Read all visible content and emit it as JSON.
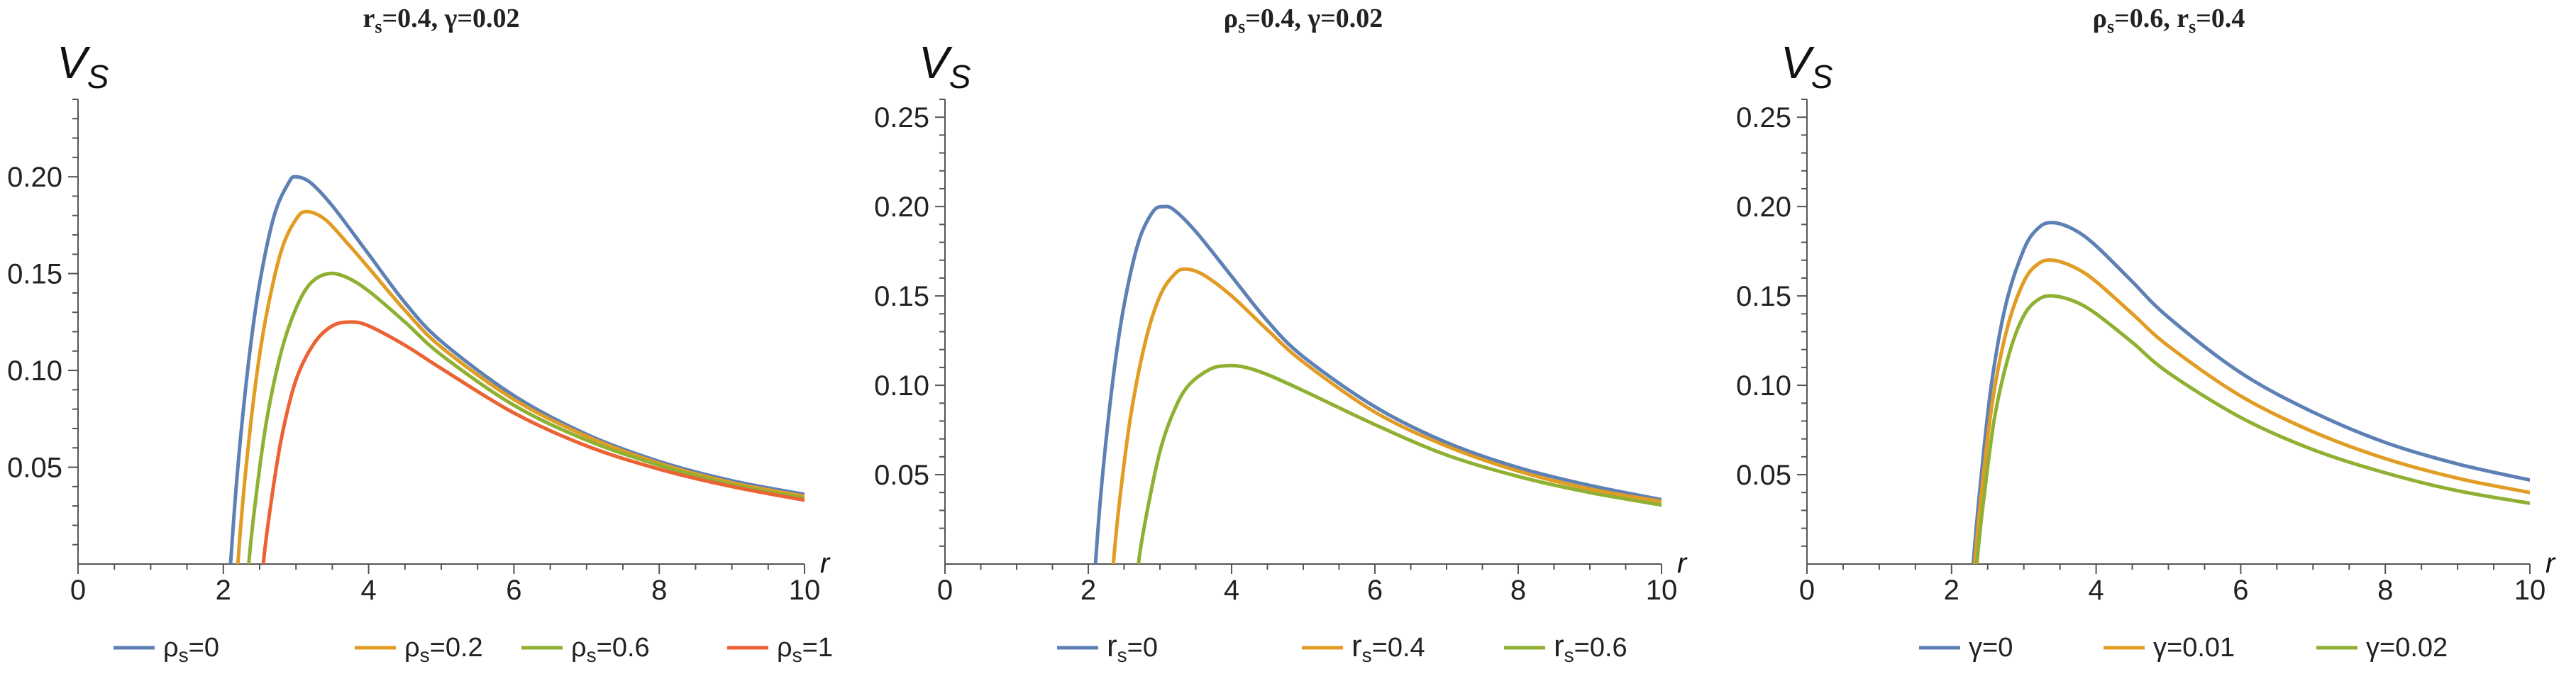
{
  "chart_data": [
    {
      "type": "line",
      "title": "r_s=0.4, γ=0.02",
      "title_parts": {
        "a": "r",
        "a_sub": "s",
        "b": "=0.4, γ=0.02"
      },
      "ylabel": "V",
      "ylabel_sub": "S",
      "xlabel": "r",
      "xlim": [
        0,
        10
      ],
      "ylim": [
        0,
        0.24
      ],
      "xticks": [
        "0",
        "2",
        "4",
        "6",
        "8",
        "10"
      ],
      "yticks": [
        "0.05",
        "0.10",
        "0.15",
        "0.20"
      ],
      "legend_position": "bottom",
      "series": [
        {
          "name": "ρs=0",
          "label_parts": [
            "ρ",
            "s",
            "=0"
          ],
          "color": "#5E81B5",
          "x": [
            2.1,
            2.2,
            2.35,
            2.5,
            2.7,
            2.9,
            3.0,
            3.2,
            3.5,
            4.0,
            4.5,
            5.0,
            6.0,
            7.0,
            8.0,
            9.0,
            10.0
          ],
          "y": [
            0.0,
            0.05,
            0.105,
            0.145,
            0.18,
            0.197,
            0.2,
            0.197,
            0.185,
            0.16,
            0.135,
            0.115,
            0.087,
            0.067,
            0.053,
            0.043,
            0.036
          ]
        },
        {
          "name": "ρs=0.2",
          "label_parts": [
            "ρ",
            "s",
            "=0.2"
          ],
          "color": "#E19C24",
          "x": [
            2.2,
            2.3,
            2.45,
            2.6,
            2.8,
            3.0,
            3.15,
            3.4,
            3.7,
            4.0,
            4.5,
            5.0,
            6.0,
            7.0,
            8.0,
            9.0,
            10.0
          ],
          "y": [
            0.0,
            0.045,
            0.095,
            0.13,
            0.162,
            0.178,
            0.182,
            0.178,
            0.166,
            0.153,
            0.131,
            0.112,
            0.085,
            0.066,
            0.052,
            0.042,
            0.035
          ]
        },
        {
          "name": "ρs=0.6",
          "label_parts": [
            "ρ",
            "s",
            "=0.6"
          ],
          "color": "#8FB032",
          "x": [
            2.35,
            2.45,
            2.6,
            2.8,
            3.0,
            3.2,
            3.45,
            3.7,
            4.0,
            4.5,
            5.0,
            6.0,
            7.0,
            8.0,
            9.0,
            10.0
          ],
          "y": [
            0.0,
            0.035,
            0.075,
            0.11,
            0.132,
            0.145,
            0.15,
            0.148,
            0.141,
            0.125,
            0.108,
            0.082,
            0.064,
            0.051,
            0.041,
            0.034
          ]
        },
        {
          "name": "ρs=1",
          "label_parts": [
            "ρ",
            "s",
            "=1"
          ],
          "color": "#EB6235",
          "x": [
            2.55,
            2.65,
            2.8,
            3.0,
            3.25,
            3.5,
            3.75,
            4.0,
            4.5,
            5.0,
            6.0,
            7.0,
            8.0,
            9.0,
            10.0
          ],
          "y": [
            0.0,
            0.03,
            0.065,
            0.095,
            0.114,
            0.123,
            0.125,
            0.123,
            0.113,
            0.101,
            0.078,
            0.061,
            0.049,
            0.04,
            0.033
          ]
        }
      ]
    },
    {
      "type": "line",
      "title": "ρ_s=0.4, γ=0.02",
      "title_parts": {
        "a": "ρ",
        "a_sub": "s",
        "b": "=0.4, γ=0.02"
      },
      "ylabel": "V",
      "ylabel_sub": "S",
      "xlabel": "r",
      "xlim": [
        0,
        10
      ],
      "ylim": [
        0,
        0.26
      ],
      "xticks": [
        "0",
        "2",
        "4",
        "6",
        "8",
        "10"
      ],
      "yticks": [
        "0.05",
        "0.10",
        "0.15",
        "0.20",
        "0.25"
      ],
      "legend_position": "bottom",
      "series": [
        {
          "name": "rs=0",
          "label_parts": [
            "r",
            "s",
            "=0"
          ],
          "color": "#5E81B5",
          "x": [
            2.1,
            2.2,
            2.35,
            2.5,
            2.7,
            2.9,
            3.05,
            3.2,
            3.5,
            4.0,
            4.5,
            5.0,
            6.0,
            7.0,
            8.0,
            9.0,
            10.0
          ],
          "y": [
            0.0,
            0.05,
            0.105,
            0.145,
            0.18,
            0.197,
            0.2,
            0.198,
            0.186,
            0.161,
            0.136,
            0.116,
            0.088,
            0.068,
            0.054,
            0.044,
            0.036
          ]
        },
        {
          "name": "rs=0.4",
          "label_parts": [
            "r",
            "s",
            "=0.4"
          ],
          "color": "#E19C24",
          "x": [
            2.35,
            2.45,
            2.6,
            2.8,
            3.0,
            3.2,
            3.35,
            3.6,
            4.0,
            4.5,
            5.0,
            6.0,
            7.0,
            8.0,
            9.0,
            10.0
          ],
          "y": [
            0.0,
            0.04,
            0.085,
            0.125,
            0.15,
            0.162,
            0.165,
            0.162,
            0.15,
            0.131,
            0.113,
            0.085,
            0.066,
            0.052,
            0.042,
            0.035
          ]
        },
        {
          "name": "rs=0.6",
          "label_parts": [
            "r",
            "s",
            "=0.6"
          ],
          "color": "#8FB032",
          "x": [
            2.7,
            2.8,
            3.0,
            3.2,
            3.4,
            3.7,
            3.95,
            4.2,
            4.5,
            5.0,
            6.0,
            7.0,
            8.0,
            9.0,
            10.0
          ],
          "y": [
            0.0,
            0.025,
            0.063,
            0.086,
            0.1,
            0.109,
            0.111,
            0.11,
            0.106,
            0.097,
            0.078,
            0.061,
            0.049,
            0.04,
            0.033
          ]
        }
      ]
    },
    {
      "type": "line",
      "title": "ρ_s=0.6, r_s=0.4",
      "title_parts": {
        "a": "ρ",
        "a_sub": "s",
        "b": "=0.6, ",
        "c": "r",
        "c_sub": "s",
        "d": "=0.4"
      },
      "ylabel": "V",
      "ylabel_sub": "S",
      "xlabel": "r",
      "xlim": [
        0,
        10
      ],
      "ylim": [
        0,
        0.26
      ],
      "xticks": [
        "0",
        "2",
        "4",
        "6",
        "8",
        "10"
      ],
      "yticks": [
        "0.05",
        "0.10",
        "0.15",
        "0.20",
        "0.25"
      ],
      "legend_position": "bottom",
      "series": [
        {
          "name": "γ=0",
          "label_parts": [
            "γ",
            "",
            "=0"
          ],
          "color": "#5E81B5",
          "x": [
            2.3,
            2.4,
            2.55,
            2.75,
            3.0,
            3.2,
            3.4,
            3.7,
            4.0,
            4.5,
            5.0,
            6.0,
            7.0,
            8.0,
            9.0,
            10.0
          ],
          "y": [
            0.0,
            0.045,
            0.1,
            0.145,
            0.176,
            0.188,
            0.191,
            0.187,
            0.178,
            0.158,
            0.138,
            0.107,
            0.085,
            0.068,
            0.056,
            0.047
          ]
        },
        {
          "name": "γ=0.01",
          "label_parts": [
            "γ",
            "",
            "=0.01"
          ],
          "color": "#E19C24",
          "x": [
            2.32,
            2.42,
            2.57,
            2.77,
            3.0,
            3.2,
            3.4,
            3.7,
            4.0,
            4.5,
            5.0,
            6.0,
            7.0,
            8.0,
            9.0,
            10.0
          ],
          "y": [
            0.0,
            0.042,
            0.092,
            0.132,
            0.158,
            0.168,
            0.17,
            0.166,
            0.158,
            0.14,
            0.122,
            0.094,
            0.074,
            0.059,
            0.048,
            0.04
          ]
        },
        {
          "name": "γ=0.02",
          "label_parts": [
            "γ",
            "",
            "=0.02"
          ],
          "color": "#8FB032",
          "x": [
            2.35,
            2.45,
            2.6,
            2.8,
            3.0,
            3.2,
            3.4,
            3.7,
            4.0,
            4.5,
            5.0,
            6.0,
            7.0,
            8.0,
            9.0,
            10.0
          ],
          "y": [
            0.0,
            0.038,
            0.083,
            0.118,
            0.139,
            0.148,
            0.15,
            0.147,
            0.14,
            0.124,
            0.107,
            0.082,
            0.064,
            0.051,
            0.041,
            0.034
          ]
        }
      ]
    }
  ]
}
